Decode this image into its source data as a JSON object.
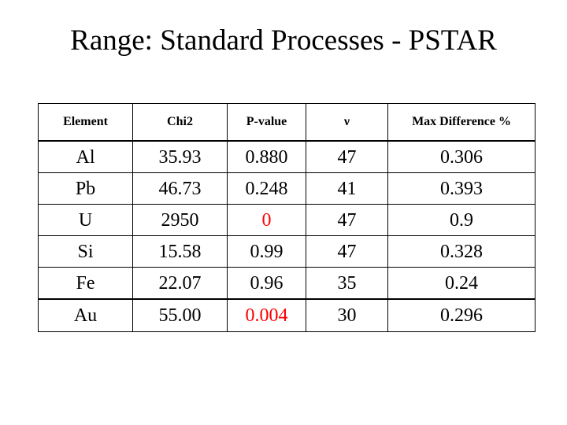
{
  "title": "Range: Standard Processes - PSTAR",
  "table": {
    "headers": [
      "Element",
      "Chi2",
      "P-value",
      "ν",
      "Max Difference %"
    ],
    "rows": [
      {
        "element": "Al",
        "chi2": "35.93",
        "pvalue": "0.880",
        "nu": "47",
        "maxdiff": "0.306",
        "pvalue_highlight": false
      },
      {
        "element": "Pb",
        "chi2": "46.73",
        "pvalue": "0.248",
        "nu": "41",
        "maxdiff": "0.393",
        "pvalue_highlight": false
      },
      {
        "element": "U",
        "chi2": "2950",
        "pvalue": "0",
        "nu": "47",
        "maxdiff": "0.9",
        "pvalue_highlight": true
      },
      {
        "element": "Si",
        "chi2": "15.58",
        "pvalue": "0.99",
        "nu": "47",
        "maxdiff": "0.328",
        "pvalue_highlight": false
      },
      {
        "element": "Fe",
        "chi2": "22.07",
        "pvalue": "0.96",
        "nu": "35",
        "maxdiff": "0.24",
        "pvalue_highlight": false
      },
      {
        "element": "Au",
        "chi2": "55.00",
        "pvalue": "0.004",
        "nu": "30",
        "maxdiff": "0.296",
        "pvalue_highlight": true
      }
    ]
  },
  "colors": {
    "highlight": "#ff0000",
    "text": "#000000",
    "background": "#ffffff"
  }
}
